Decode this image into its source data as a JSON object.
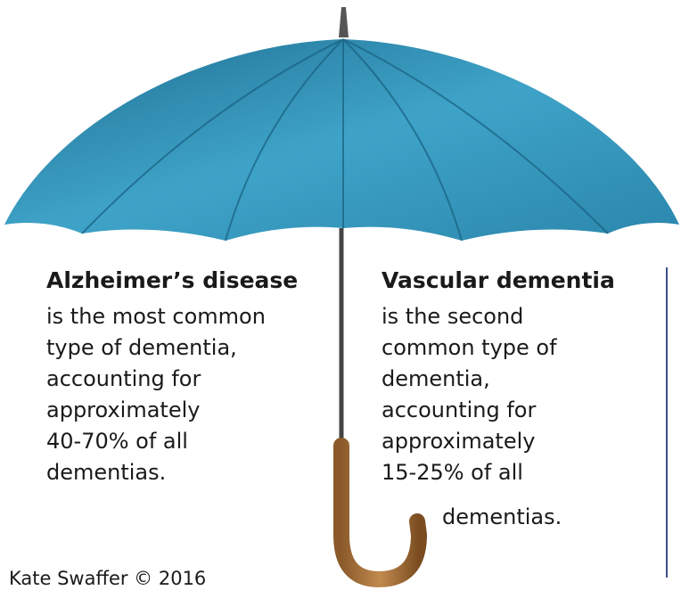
{
  "left": {
    "title": "Alzheimer’s disease",
    "lines": [
      "is the most common",
      "type of dementia,",
      "accounting for",
      "approximately",
      "40-70% of all",
      "dementias."
    ]
  },
  "right": {
    "title": "Vascular dementia",
    "lines": [
      "is the second",
      "common type of",
      "dementia,",
      "accounting for",
      "approximately",
      "15-25% of all",
      "dementias."
    ]
  },
  "credit": "Kate Swaffer © 2016"
}
